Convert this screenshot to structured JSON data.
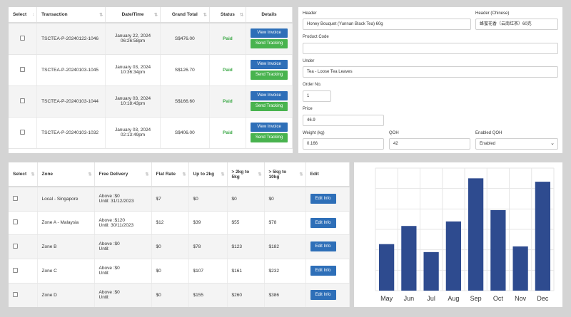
{
  "transactions": {
    "headers": [
      "Select",
      "Transaction",
      "Date/Time",
      "Grand Total",
      "Status",
      "Details"
    ],
    "rows": [
      {
        "id": "TSCTEA-P-20240122-1046",
        "date": "January 22, 2024",
        "time": "06:26:58pm",
        "total": "S$476.00",
        "status": "Paid",
        "view": "View Invoice",
        "track": "Send Tracking"
      },
      {
        "id": "TSCTEA-P-20240103-1045",
        "date": "January 03, 2024",
        "time": "10:36:34pm",
        "total": "S$126.70",
        "status": "Paid",
        "view": "View Invoice",
        "track": "Send Tracking"
      },
      {
        "id": "TSCTEA-P-20240103-1044",
        "date": "January 03, 2024",
        "time": "10:18:43pm",
        "total": "S$166.60",
        "status": "Paid",
        "view": "View Invoice",
        "track": "Send Tracking"
      },
      {
        "id": "TSCTEA-P-20240103-1032",
        "date": "January 03, 2024",
        "time": "02:13:49pm",
        "total": "S$406.00",
        "status": "Paid",
        "view": "View Invoice",
        "track": "Send Tracking"
      }
    ]
  },
  "product_form": {
    "header_label": "Header",
    "header_value": "Honey Bouquet (Yunnan Black Tea) 60g",
    "header_cn_label": "Header (Chinese)",
    "header_cn_value": "蜂蜜花香（云南红茶）60克",
    "code_label": "Product Code",
    "code_value": "",
    "under_label": "Under",
    "under_value": "Tea - Loose Tea Leaves",
    "order_label": "Order No.",
    "order_value": "1",
    "price_label": "Price",
    "price_value": "46.9",
    "weight_label": "Weight (kg)",
    "weight_value": "0.166",
    "qoh_label": "QOH",
    "qoh_value": "42",
    "enabled_label": "Enabled QOH",
    "enabled_value": "Enabled"
  },
  "shipping": {
    "headers": [
      "Select",
      "Zone",
      "Free Delivery",
      "Flat Rate",
      "Up to 2kg",
      "> 2kg to 5kg",
      "> 5kg to 10kg",
      "Edit"
    ],
    "rows": [
      {
        "zone": "Local - Singapore",
        "above": "Above :$0",
        "until": "Until: 31/12/2023",
        "flat": "$7",
        "up2": "$0",
        "to5": "$0",
        "to10": "$0",
        "edit": "Edit Info"
      },
      {
        "zone": "Zone A - Malaysia",
        "above": "Above :$120",
        "until": "Until: 30/11/2023",
        "flat": "$12",
        "up2": "$39",
        "to5": "$55",
        "to10": "$78",
        "edit": "Edit Info"
      },
      {
        "zone": "Zone B",
        "above": "Above :$0",
        "until": "Until:",
        "flat": "$0",
        "up2": "$78",
        "to5": "$123",
        "to10": "$182",
        "edit": "Edit Info"
      },
      {
        "zone": "Zone C",
        "above": "Above :$0",
        "until": "Until:",
        "flat": "$0",
        "up2": "$107",
        "to5": "$161",
        "to10": "$232",
        "edit": "Edit Info"
      },
      {
        "zone": "Zone D",
        "above": "Above :$0",
        "until": "Until:",
        "flat": "$0",
        "up2": "$155",
        "to5": "$260",
        "to10": "$386",
        "edit": "Edit Info"
      }
    ]
  },
  "chart_data": {
    "type": "bar",
    "categories": [
      "May",
      "Jun",
      "Jul",
      "Aug",
      "Sep",
      "Oct",
      "Nov",
      "Dec"
    ],
    "values": [
      41,
      57,
      34,
      61,
      99,
      71,
      39,
      96
    ],
    "ylim": [
      0,
      108
    ],
    "grid": true,
    "bar_color": "#2e4b8f"
  },
  "colors": {
    "primary": "#2e6fb8",
    "success": "#48b34e"
  }
}
